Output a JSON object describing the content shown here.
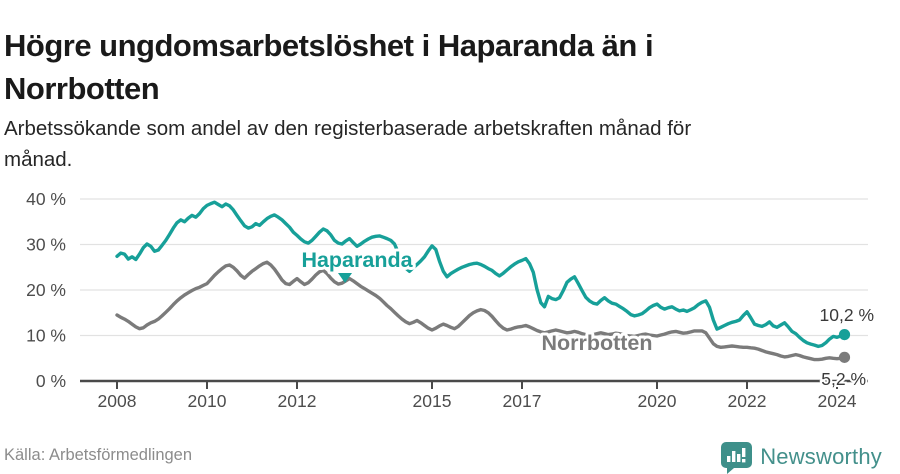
{
  "header": {
    "title": "Högre ungdomsarbetslöshet i Haparanda än i Norrbotten",
    "subtitle": "Arbetssökande som andel av den registerbaserade arbetskraften månad för månad."
  },
  "footer": {
    "source": "Källa: Arbetsförmedlingen",
    "brand": "Newsworthy"
  },
  "colors": {
    "haparanda": "#17a099",
    "norrbotten": "#7b7b7b",
    "axis": "#4a4a4a",
    "grid": "#e2e2e2",
    "tick_text": "#4d4d4d",
    "end_label_text": "#3a3a3a",
    "brand_teal": "#43908b"
  },
  "chart_data": {
    "type": "line",
    "x_start_year": 2008,
    "points_per_year": 12,
    "xlim": [
      2007.2,
      2024.7
    ],
    "ylim": [
      0,
      43
    ],
    "grid": true,
    "y_unit_suffix": " %",
    "y_ticks": [
      {
        "value": 0,
        "label": "0 %"
      },
      {
        "value": 10,
        "label": "10 %"
      },
      {
        "value": 20,
        "label": "20 %"
      },
      {
        "value": 30,
        "label": "30 %"
      },
      {
        "value": 40,
        "label": "40 %"
      }
    ],
    "x_ticks": [
      {
        "year": 2008,
        "label": "2008"
      },
      {
        "year": 2010,
        "label": "2010"
      },
      {
        "year": 2012,
        "label": "2012"
      },
      {
        "year": 2015,
        "label": "2015"
      },
      {
        "year": 2017,
        "label": "2017"
      },
      {
        "year": 2020,
        "label": "2020"
      },
      {
        "year": 2022,
        "label": "2022"
      },
      {
        "year": 2024,
        "label": "2024"
      }
    ],
    "series": [
      {
        "name": "Haparanda",
        "color": "#17a099",
        "end_label": "10,2 %",
        "end_value": 10.2,
        "values": [
          27.4,
          28.1,
          27.9,
          26.8,
          27.3,
          26.7,
          27.9,
          29.3,
          30.1,
          29.6,
          28.5,
          28.8,
          29.8,
          30.9,
          32.2,
          33.6,
          34.8,
          35.4,
          35.0,
          35.8,
          36.4,
          36.0,
          36.8,
          37.9,
          38.6,
          39.0,
          39.3,
          38.8,
          38.3,
          38.9,
          38.5,
          37.6,
          36.4,
          35.2,
          34.1,
          33.6,
          33.9,
          34.6,
          34.2,
          35.0,
          35.7,
          36.2,
          36.5,
          36.0,
          35.4,
          34.6,
          33.8,
          32.7,
          32.0,
          31.2,
          30.6,
          30.3,
          30.9,
          31.8,
          32.7,
          33.4,
          33.0,
          32.1,
          30.9,
          30.3,
          30.1,
          30.8,
          31.3,
          30.4,
          29.6,
          30.1,
          30.7,
          31.2,
          31.6,
          31.8,
          31.9,
          31.6,
          31.3,
          30.9,
          30.1,
          28.2,
          26.2,
          24.8,
          24.1,
          24.9,
          25.6,
          26.4,
          27.3,
          28.6,
          29.7,
          28.9,
          26.3,
          24.1,
          22.9,
          23.6,
          24.1,
          24.6,
          25.0,
          25.3,
          25.6,
          25.8,
          25.9,
          25.6,
          25.2,
          24.7,
          24.3,
          23.6,
          23.1,
          23.7,
          24.4,
          25.1,
          25.7,
          26.2,
          26.5,
          26.9,
          25.8,
          23.9,
          20.1,
          17.2,
          16.3,
          18.6,
          18.1,
          17.9,
          18.3,
          19.9,
          21.7,
          22.4,
          22.9,
          21.4,
          19.9,
          18.4,
          17.6,
          17.1,
          16.9,
          17.7,
          18.3,
          17.6,
          17.1,
          16.9,
          16.4,
          15.9,
          15.3,
          14.6,
          14.3,
          14.5,
          14.8,
          15.4,
          16.1,
          16.6,
          16.9,
          16.2,
          15.8,
          16.1,
          16.3,
          15.8,
          15.4,
          15.6,
          15.3,
          15.7,
          16.1,
          16.8,
          17.3,
          17.6,
          16.2,
          13.4,
          11.4,
          11.8,
          12.2,
          12.6,
          12.9,
          13.1,
          13.4,
          14.4,
          15.2,
          13.9,
          12.5,
          12.2,
          12.0,
          12.4,
          13.0,
          12.1,
          11.8,
          12.3,
          12.8,
          11.9,
          10.9,
          10.4,
          9.6,
          8.9,
          8.4,
          8.1,
          7.9,
          7.6,
          7.8,
          8.4,
          9.2,
          9.8,
          9.6,
          9.9,
          10.2
        ]
      },
      {
        "name": "Norrbotten",
        "color": "#7b7b7b",
        "end_label": "5,2 %",
        "end_value": 5.2,
        "values": [
          14.5,
          14.0,
          13.6,
          13.1,
          12.5,
          11.9,
          11.5,
          11.7,
          12.3,
          12.8,
          13.1,
          13.6,
          14.3,
          15.1,
          15.9,
          16.8,
          17.6,
          18.3,
          18.9,
          19.4,
          19.9,
          20.3,
          20.6,
          21.0,
          21.4,
          22.3,
          23.2,
          24.0,
          24.7,
          25.3,
          25.5,
          25.0,
          24.2,
          23.2,
          22.6,
          23.4,
          24.1,
          24.7,
          25.3,
          25.8,
          26.1,
          25.5,
          24.6,
          23.4,
          22.2,
          21.4,
          21.2,
          21.9,
          22.5,
          21.8,
          21.2,
          21.6,
          22.4,
          23.3,
          24.0,
          24.3,
          23.6,
          22.6,
          21.8,
          21.3,
          21.5,
          22.0,
          22.5,
          22.0,
          21.4,
          20.8,
          20.3,
          19.8,
          19.3,
          18.8,
          18.2,
          17.4,
          16.6,
          15.9,
          15.1,
          14.3,
          13.6,
          13.0,
          12.6,
          12.9,
          13.3,
          12.8,
          12.2,
          11.6,
          11.2,
          11.6,
          12.1,
          12.5,
          12.2,
          11.8,
          11.5,
          12.0,
          12.8,
          13.6,
          14.4,
          15.0,
          15.4,
          15.7,
          15.5,
          15.0,
          14.2,
          13.2,
          12.3,
          11.6,
          11.2,
          11.4,
          11.7,
          11.9,
          12.0,
          12.2,
          11.9,
          11.5,
          11.1,
          10.8,
          10.6,
          10.8,
          11.0,
          11.2,
          11.0,
          10.8,
          10.6,
          10.7,
          10.9,
          10.7,
          10.4,
          10.2,
          10.0,
          10.2,
          10.4,
          10.6,
          10.4,
          10.2,
          10.3,
          10.5,
          10.4,
          10.2,
          10.0,
          9.9,
          9.8,
          10.0,
          10.2,
          10.3,
          10.1,
          10.0,
          9.9,
          10.1,
          10.3,
          10.6,
          10.8,
          10.9,
          10.7,
          10.5,
          10.6,
          10.8,
          11.0,
          11.0,
          11.0,
          10.6,
          9.4,
          8.2,
          7.6,
          7.4,
          7.5,
          7.6,
          7.7,
          7.6,
          7.5,
          7.4,
          7.4,
          7.3,
          7.2,
          7.0,
          6.7,
          6.4,
          6.2,
          6.0,
          5.8,
          5.5,
          5.3,
          5.4,
          5.6,
          5.8,
          5.6,
          5.3,
          5.1,
          4.9,
          4.7,
          4.7,
          4.8,
          5.0,
          5.1,
          5.0,
          4.9,
          5.0,
          5.2
        ]
      }
    ]
  }
}
